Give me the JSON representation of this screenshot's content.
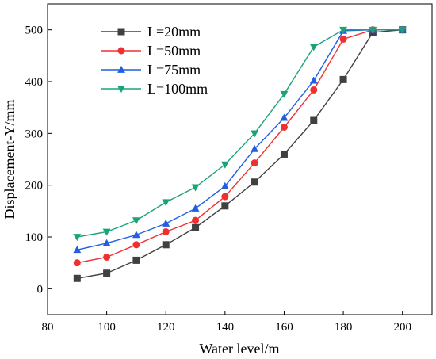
{
  "chart_data": {
    "type": "line",
    "xlabel": "Water level/m",
    "ylabel": "Displacement-Y/mm",
    "xlim": [
      80,
      210
    ],
    "ylim": [
      -50,
      550
    ],
    "x_ticks": [
      80,
      100,
      120,
      140,
      160,
      180,
      200
    ],
    "y_ticks": [
      0,
      100,
      200,
      300,
      400,
      500
    ],
    "x": [
      90,
      100,
      110,
      120,
      130,
      140,
      150,
      160,
      170,
      180,
      190,
      200
    ],
    "legend_position": "top-left",
    "grid": false,
    "series": [
      {
        "name": "L=20mm",
        "color": "#404040",
        "marker": "square",
        "values": [
          20,
          30,
          55,
          85,
          118,
          160,
          206,
          260,
          325,
          404,
          495,
          500
        ]
      },
      {
        "name": "L=50mm",
        "color": "#f03030",
        "marker": "circle",
        "values": [
          50,
          61,
          85,
          110,
          132,
          178,
          243,
          312,
          384,
          482,
          500,
          500
        ]
      },
      {
        "name": "L=75mm",
        "color": "#1f5fe0",
        "marker": "triangle-up",
        "values": [
          75,
          88,
          104,
          126,
          155,
          198,
          270,
          330,
          402,
          498,
          500,
          500
        ]
      },
      {
        "name": "L=100mm",
        "color": "#1aa37a",
        "marker": "triangle-down",
        "values": [
          100,
          110,
          132,
          167,
          196,
          240,
          300,
          376,
          467,
          500,
          500,
          500
        ]
      }
    ]
  }
}
